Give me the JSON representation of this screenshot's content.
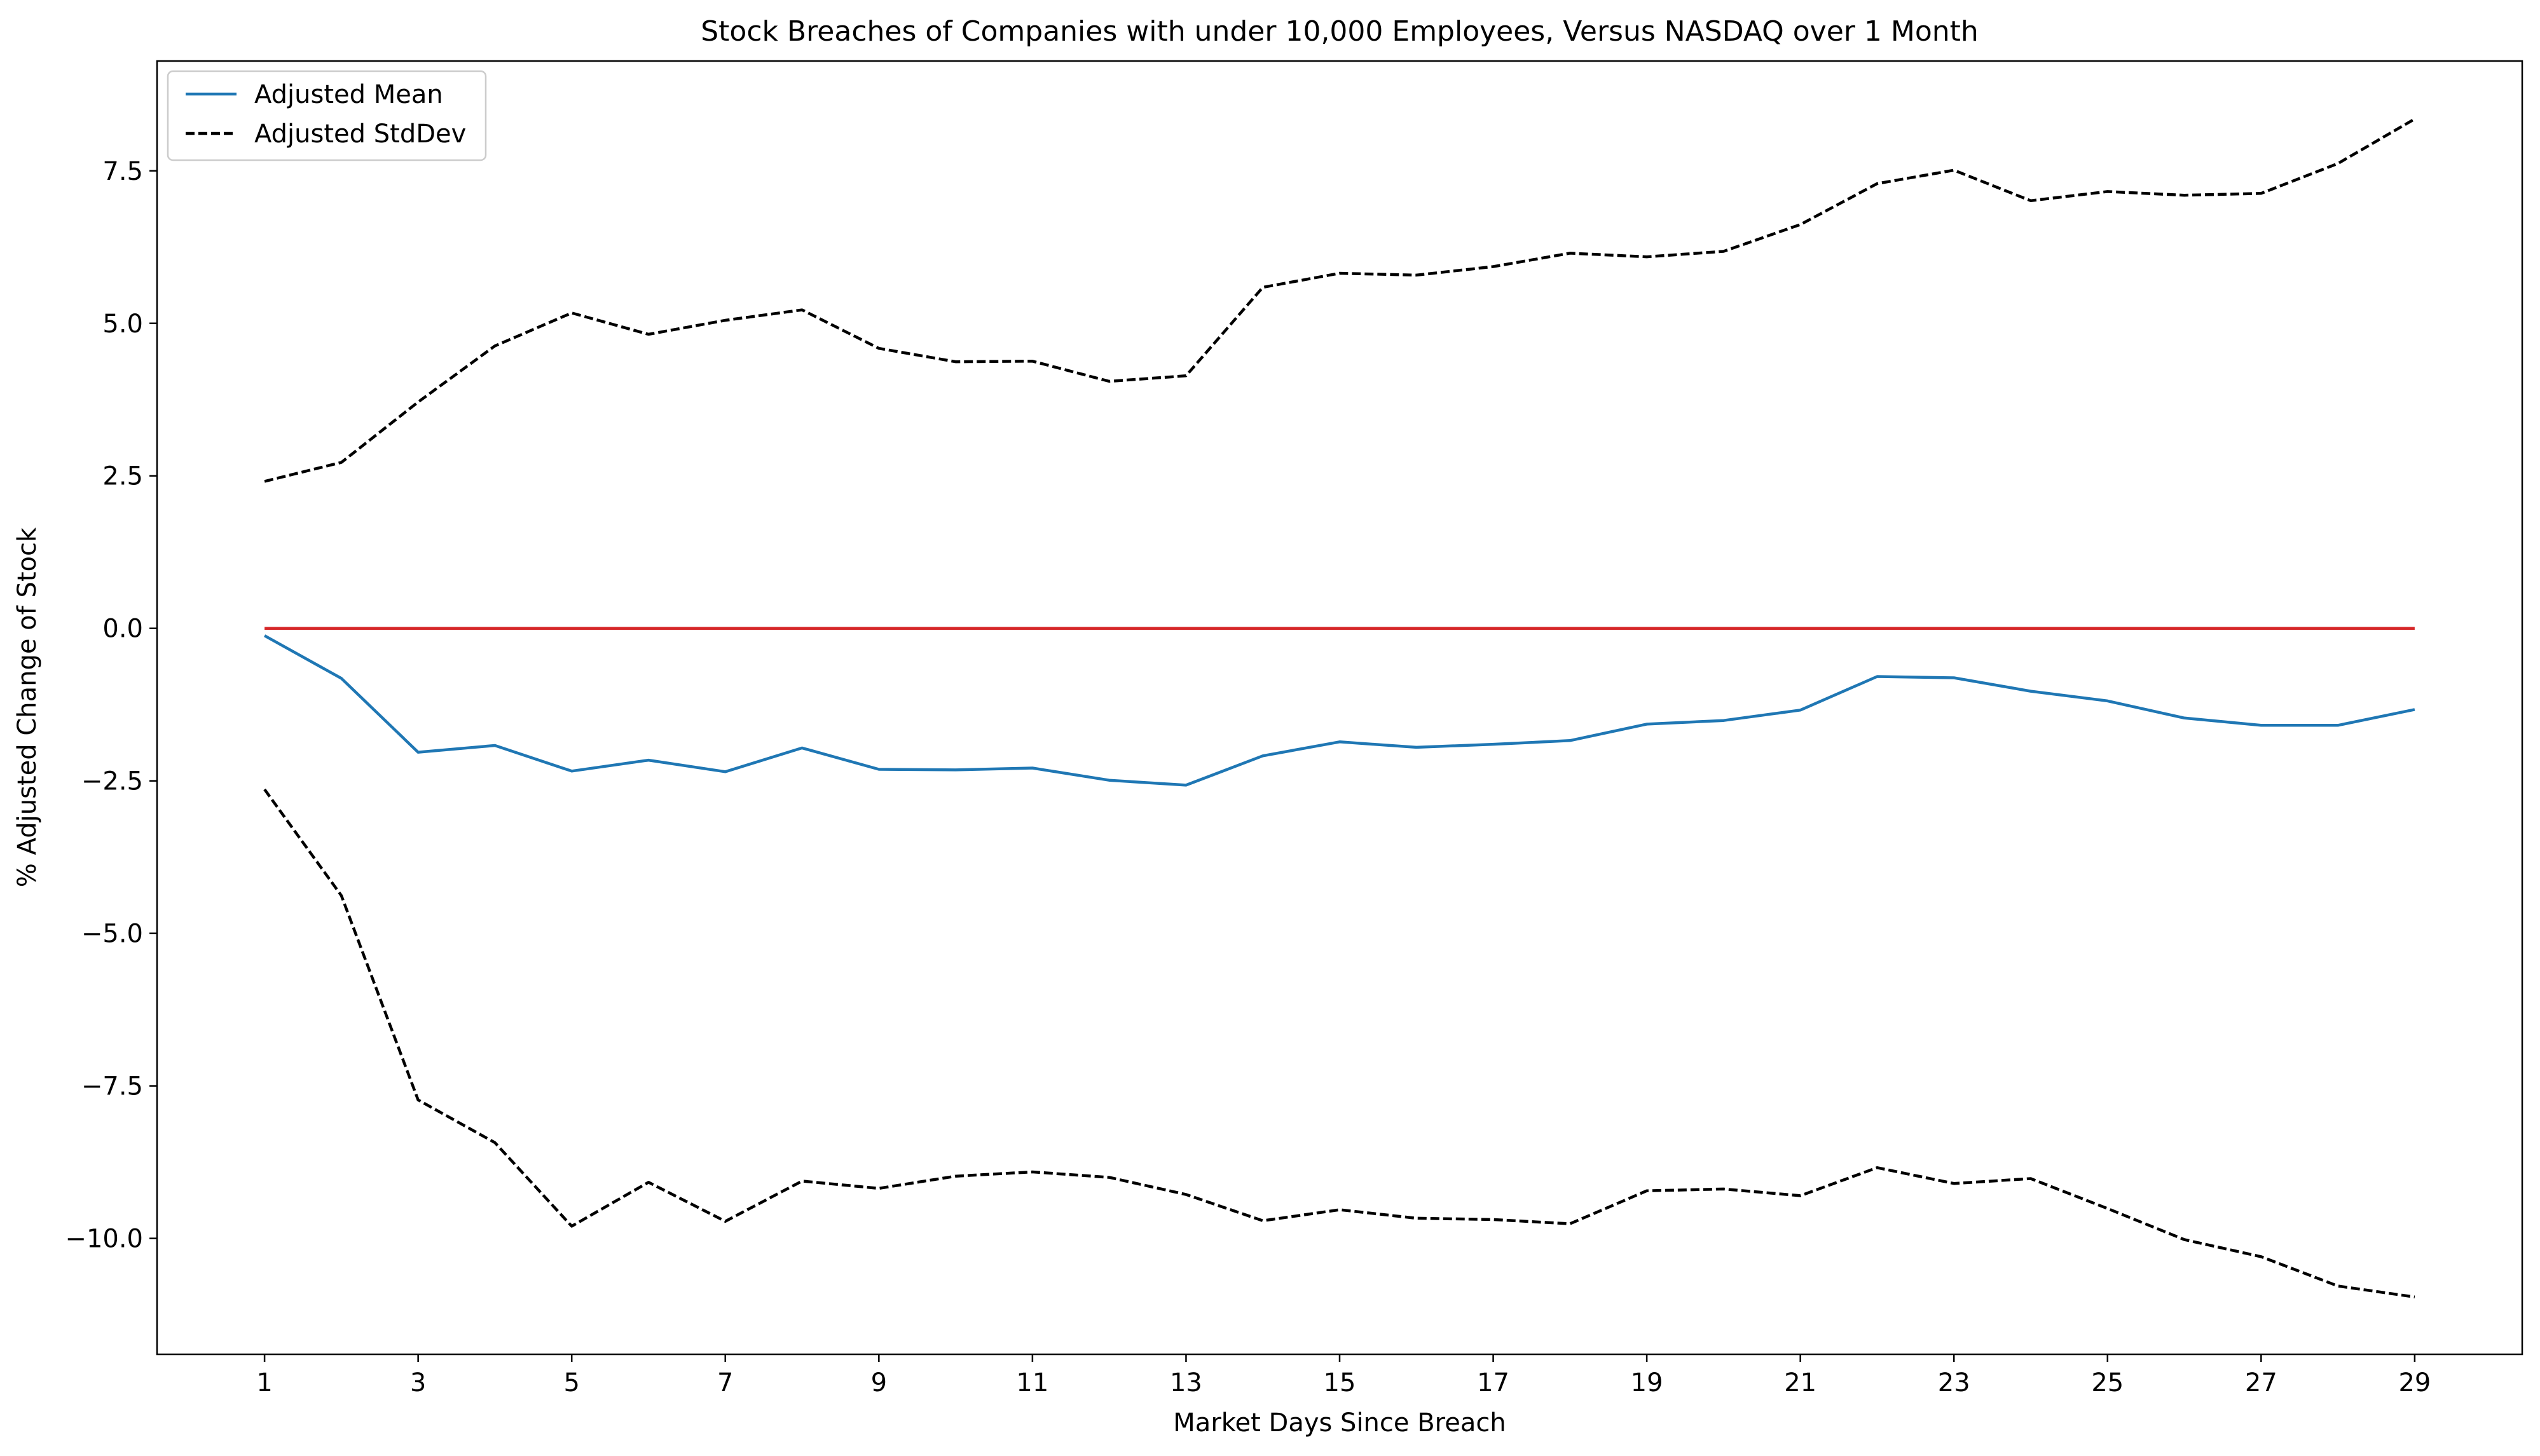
{
  "chart_data": {
    "type": "line",
    "title": "Stock Breaches of Companies with under 10,000 Employees, Versus NASDAQ over 1 Month",
    "xlabel": "Market Days Since Breach",
    "ylabel": "% Adjusted Change of Stock",
    "xlim": [
      -0.4,
      30.4
    ],
    "ylim": [
      -11.9,
      9.3
    ],
    "x_ticks": [
      1,
      3,
      5,
      7,
      9,
      11,
      13,
      15,
      17,
      19,
      21,
      23,
      25,
      27,
      29
    ],
    "y_ticks": [
      -10.0,
      -7.5,
      -5.0,
      -2.5,
      0.0,
      2.5,
      5.0,
      7.5
    ],
    "y_tick_labels": [
      "−10.0",
      "−7.5",
      "−5.0",
      "−2.5",
      "0.0",
      "2.5",
      "5.0",
      "7.5"
    ],
    "legend": {
      "placement": "top-left",
      "entries": [
        {
          "label": "Adjusted Mean",
          "color": "#1f77b4",
          "style": "solid"
        },
        {
          "label": "Adjusted StdDev",
          "color": "#000000",
          "style": "dashed"
        }
      ]
    },
    "grid": false,
    "x": [
      1,
      2,
      3,
      4,
      5,
      6,
      7,
      8,
      9,
      10,
      11,
      12,
      13,
      14,
      15,
      16,
      17,
      18,
      19,
      20,
      21,
      22,
      23,
      24,
      25,
      26,
      27,
      28,
      29
    ],
    "series": [
      {
        "name": "Adjusted Mean",
        "color": "#1f77b4",
        "style": "solid",
        "values": [
          -0.12,
          -0.82,
          -2.03,
          -1.92,
          -2.34,
          -2.16,
          -2.35,
          -1.96,
          -2.31,
          -2.32,
          -2.29,
          -2.49,
          -2.57,
          -2.09,
          -1.86,
          -1.95,
          -1.9,
          -1.84,
          -1.57,
          -1.51,
          -1.34,
          -0.79,
          -0.81,
          -1.03,
          -1.19,
          -1.47,
          -1.59,
          -1.59,
          -1.33
        ]
      },
      {
        "name": "Adjusted StdDev",
        "color": "#000000",
        "style": "dashed",
        "values": [
          2.41,
          2.72,
          3.71,
          4.63,
          5.17,
          4.82,
          5.05,
          5.22,
          4.59,
          4.37,
          4.38,
          4.05,
          4.14,
          5.59,
          5.82,
          5.79,
          5.93,
          6.15,
          6.09,
          6.18,
          6.62,
          7.29,
          7.51,
          7.01,
          7.16,
          7.1,
          7.13,
          7.62,
          8.35
        ]
      },
      {
        "color": "#000000",
        "style": "dashed",
        "values": [
          -2.64,
          -4.38,
          -7.73,
          -8.43,
          -9.8,
          -9.08,
          -9.72,
          -9.06,
          -9.18,
          -8.98,
          -8.91,
          -9.0,
          -9.28,
          -9.71,
          -9.53,
          -9.67,
          -9.69,
          -9.76,
          -9.22,
          -9.19,
          -9.3,
          -8.84,
          -9.1,
          -9.02,
          -9.51,
          -10.02,
          -10.3,
          -10.78,
          -10.96
        ]
      },
      {
        "color": "#d62728",
        "style": "solid",
        "values": [
          0.0,
          0.0,
          0.0,
          0.0,
          0.0,
          0.0,
          0.0,
          0.0,
          0.0,
          0.0,
          0.0,
          0.0,
          0.0,
          0.0,
          0.0,
          0.0,
          0.0,
          0.0,
          0.0,
          0.0,
          0.0,
          0.0,
          0.0,
          0.0,
          0.0,
          0.0,
          0.0,
          0.0,
          0.0
        ]
      }
    ]
  }
}
